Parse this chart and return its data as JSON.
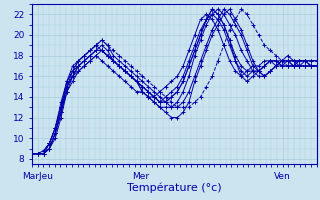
{
  "xlabel": "Température (°c)",
  "bg_color": "#cce4f0",
  "grid_color": "#aaccdd",
  "line_color": "#0000aa",
  "ylim": [
    7.5,
    23.0
  ],
  "xlim": [
    0,
    100
  ],
  "xtick_positions": [
    2,
    38,
    88
  ],
  "xtick_labels": [
    "MarJeu",
    "Mer",
    "Ven"
  ],
  "ytick_positions": [
    8,
    10,
    12,
    14,
    16,
    18,
    20,
    22
  ],
  "series": [
    [
      8.5,
      8.5,
      8.8,
      9.5,
      11.0,
      13.0,
      15.5,
      16.5,
      17.5,
      18.0,
      18.5,
      19.0,
      19.5,
      19.0,
      18.5,
      18.0,
      17.5,
      17.0,
      16.5,
      16.0,
      15.5,
      15.0,
      14.5,
      14.0,
      13.5,
      13.0,
      13.0,
      13.0,
      13.5,
      14.0,
      15.0,
      16.0,
      17.5,
      19.0,
      20.5,
      21.5,
      22.5,
      22.0,
      21.0,
      20.0,
      19.0,
      18.5,
      18.0,
      17.5,
      17.0,
      17.0,
      17.5,
      17.5,
      17.0,
      17.0
    ],
    [
      8.5,
      8.5,
      8.8,
      9.5,
      11.0,
      13.0,
      15.5,
      16.5,
      17.5,
      18.0,
      18.5,
      19.0,
      19.5,
      19.0,
      18.0,
      17.5,
      17.0,
      16.5,
      16.0,
      15.5,
      15.0,
      14.5,
      14.0,
      13.5,
      13.0,
      13.0,
      13.5,
      14.5,
      16.0,
      17.5,
      19.0,
      20.5,
      21.5,
      22.5,
      22.0,
      21.0,
      20.0,
      18.5,
      17.0,
      16.5,
      16.0,
      16.5,
      17.0,
      17.5,
      18.0,
      17.5,
      17.0,
      17.0,
      17.0,
      17.0
    ],
    [
      8.5,
      8.5,
      8.5,
      9.0,
      10.0,
      12.0,
      14.5,
      16.0,
      17.0,
      17.5,
      18.0,
      18.5,
      19.0,
      18.5,
      17.5,
      17.0,
      16.5,
      16.0,
      15.5,
      14.5,
      14.0,
      13.5,
      13.0,
      12.5,
      12.0,
      12.0,
      12.5,
      13.5,
      15.5,
      17.0,
      18.5,
      20.0,
      21.0,
      22.0,
      22.5,
      21.5,
      20.5,
      19.0,
      17.5,
      16.5,
      16.0,
      16.5,
      17.0,
      17.5,
      17.5,
      17.0,
      17.0,
      17.0,
      17.0,
      17.0
    ],
    [
      8.5,
      8.5,
      8.5,
      9.0,
      10.5,
      12.5,
      15.0,
      16.0,
      17.0,
      17.5,
      18.0,
      18.5,
      18.5,
      18.0,
      17.5,
      17.0,
      16.5,
      16.0,
      15.5,
      14.5,
      14.0,
      13.5,
      13.0,
      13.0,
      13.0,
      13.5,
      14.5,
      16.0,
      18.0,
      19.5,
      21.0,
      22.0,
      22.5,
      22.0,
      21.0,
      20.0,
      18.5,
      17.5,
      16.5,
      16.0,
      16.0,
      16.5,
      17.0,
      17.5,
      17.5,
      17.0,
      17.0,
      17.0,
      17.0,
      17.0
    ],
    [
      8.5,
      8.5,
      8.5,
      9.0,
      10.5,
      12.5,
      15.0,
      16.0,
      16.5,
      17.0,
      17.5,
      18.0,
      18.5,
      18.0,
      17.5,
      17.0,
      16.5,
      16.0,
      15.5,
      15.0,
      14.5,
      14.0,
      13.5,
      13.5,
      14.0,
      14.5,
      15.5,
      17.0,
      18.5,
      20.0,
      21.5,
      22.5,
      22.0,
      21.0,
      19.5,
      18.0,
      17.0,
      16.5,
      16.5,
      16.5,
      17.0,
      17.5,
      17.5,
      17.0,
      17.0,
      17.0,
      17.0,
      17.5,
      17.5,
      17.5
    ],
    [
      8.5,
      8.5,
      8.5,
      9.5,
      11.0,
      13.0,
      15.0,
      16.5,
      17.0,
      17.5,
      18.0,
      18.5,
      18.5,
      18.0,
      17.5,
      17.0,
      16.5,
      16.0,
      15.5,
      15.0,
      14.5,
      14.0,
      13.5,
      14.0,
      14.5,
      15.0,
      16.0,
      17.5,
      19.0,
      20.5,
      21.5,
      22.0,
      21.5,
      20.5,
      19.0,
      17.5,
      16.5,
      16.0,
      16.5,
      16.5,
      17.0,
      17.5,
      17.5,
      17.0,
      17.0,
      17.0,
      17.5,
      17.5,
      17.0,
      17.0
    ],
    [
      8.5,
      8.5,
      8.5,
      9.5,
      11.0,
      13.5,
      15.5,
      17.0,
      17.5,
      18.0,
      18.5,
      19.0,
      18.5,
      18.0,
      17.5,
      17.0,
      16.5,
      16.0,
      15.5,
      15.0,
      14.5,
      14.0,
      13.5,
      13.5,
      14.0,
      14.5,
      15.5,
      17.0,
      18.5,
      20.0,
      21.5,
      22.5,
      22.0,
      21.0,
      19.5,
      17.5,
      16.0,
      15.5,
      16.0,
      16.5,
      17.0,
      17.5,
      17.0,
      17.0,
      17.5,
      17.5,
      17.5,
      17.5,
      17.0,
      17.0
    ],
    [
      8.5,
      8.5,
      8.5,
      9.0,
      10.5,
      12.5,
      14.5,
      15.5,
      16.5,
      17.0,
      17.5,
      18.0,
      17.5,
      17.0,
      16.5,
      16.0,
      15.5,
      15.0,
      14.5,
      14.5,
      14.0,
      14.0,
      14.5,
      15.0,
      15.5,
      16.0,
      17.0,
      18.5,
      20.0,
      21.5,
      22.0,
      21.5,
      20.5,
      19.0,
      17.5,
      16.5,
      16.0,
      16.5,
      17.0,
      17.0,
      17.5,
      17.5,
      17.5,
      17.5,
      17.5,
      17.5,
      17.5,
      17.5,
      17.5,
      17.5
    ]
  ],
  "dashed_series_idx": 0,
  "figsize": [
    3.2,
    2.0
  ],
  "dpi": 100
}
